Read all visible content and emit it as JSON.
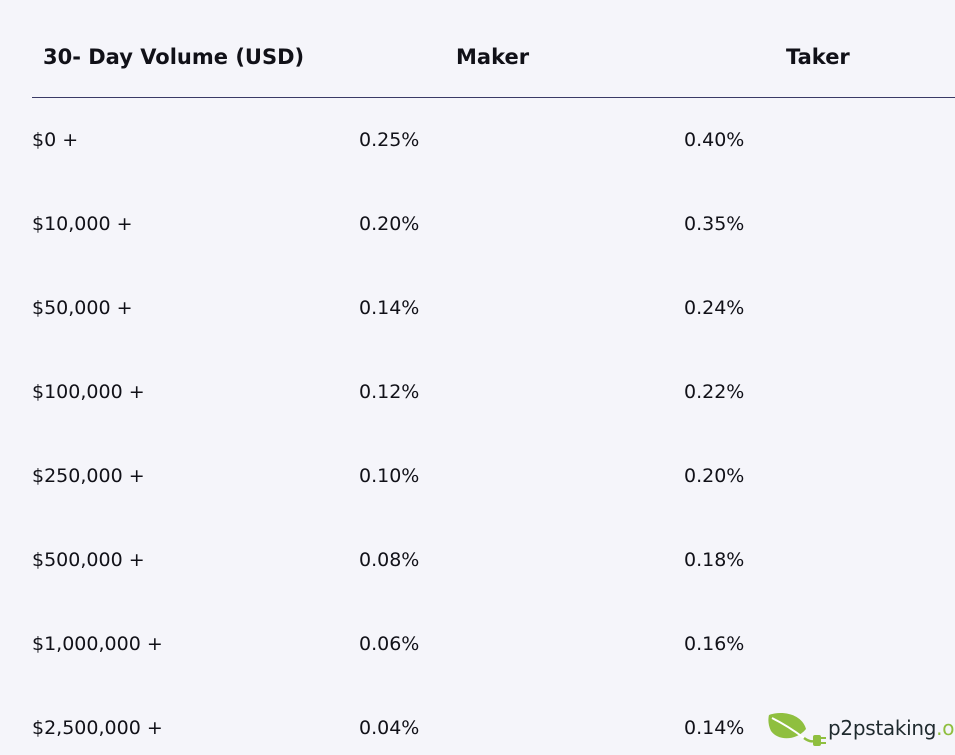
{
  "table": {
    "headers": {
      "volume": "30- Day Volume (USD)",
      "maker": "Maker",
      "taker": "Taker"
    },
    "rows": [
      {
        "volume": "$0 +",
        "maker": "0.25%",
        "taker": "0.40%"
      },
      {
        "volume": "$10,000 +",
        "maker": "0.20%",
        "taker": "0.35%"
      },
      {
        "volume": "$50,000 +",
        "maker": "0.14%",
        "taker": "0.24%"
      },
      {
        "volume": "$100,000 +",
        "maker": "0.12%",
        "taker": "0.22%"
      },
      {
        "volume": "$250,000 +",
        "maker": "0.10%",
        "taker": "0.20%"
      },
      {
        "volume": "$500,000 +",
        "maker": "0.08%",
        "taker": "0.18%"
      },
      {
        "volume": "$1,000,000 +",
        "maker": "0.06%",
        "taker": "0.16%"
      },
      {
        "volume": "$2,500,000 +",
        "maker": "0.04%",
        "taker": "0.14%"
      }
    ]
  },
  "watermark": {
    "name": "p2pstaking",
    "tld": ".org",
    "icon": "leaf-plug-icon"
  },
  "colors": {
    "background": "#f5f5fa",
    "text": "#111118",
    "divider": "#3a3a66",
    "watermark_green": "#8fbf3f",
    "watermark_dark": "#1f2a2e"
  }
}
